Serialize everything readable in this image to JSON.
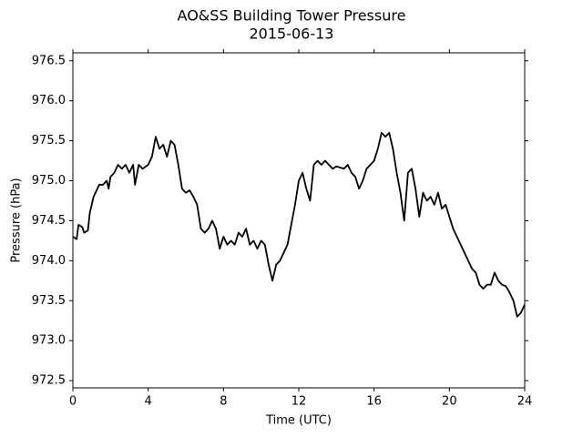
{
  "chart_data": {
    "type": "line",
    "title": [
      "AO&SS Building Tower Pressure",
      "2015-06-13"
    ],
    "x_label": "Time (UTC)",
    "y_label": "Pressure (hPa)",
    "x": [
      0,
      0.2,
      0.3,
      0.5,
      0.6,
      0.8,
      0.9,
      1.0,
      1.1,
      1.3,
      1.4,
      1.6,
      1.8,
      1.9,
      2.0,
      2.2,
      2.4,
      2.6,
      2.8,
      3.0,
      3.2,
      3.3,
      3.5,
      3.7,
      4.0,
      4.2,
      4.4,
      4.6,
      4.8,
      5.0,
      5.2,
      5.4,
      5.6,
      5.8,
      6.0,
      6.2,
      6.4,
      6.6,
      6.8,
      7.0,
      7.2,
      7.4,
      7.6,
      7.8,
      8.0,
      8.2,
      8.4,
      8.6,
      8.8,
      9.0,
      9.2,
      9.4,
      9.6,
      9.8,
      10.0,
      10.2,
      10.4,
      10.6,
      10.8,
      11.0,
      11.2,
      11.4,
      11.6,
      11.8,
      12.0,
      12.2,
      12.4,
      12.6,
      12.8,
      13.0,
      13.2,
      13.4,
      13.6,
      13.8,
      14.0,
      14.4,
      14.6,
      14.8,
      15.0,
      15.2,
      15.4,
      15.6,
      15.8,
      16.0,
      16.2,
      16.4,
      16.6,
      16.8,
      17.0,
      17.2,
      17.4,
      17.6,
      17.8,
      18.0,
      18.2,
      18.4,
      18.6,
      18.8,
      19.0,
      19.2,
      19.4,
      19.6,
      19.8,
      20.0,
      20.2,
      20.4,
      20.6,
      20.8,
      21.0,
      21.2,
      21.4,
      21.6,
      21.8,
      22.0,
      22.2,
      22.4,
      22.6,
      22.8,
      23.0,
      23.2,
      23.4,
      23.6,
      23.8,
      24.0
    ],
    "series": [
      {
        "color": "#000000",
        "values": [
          974.3,
          974.27,
          974.45,
          974.42,
          974.35,
          974.38,
          974.6,
          974.7,
          974.8,
          974.9,
          974.95,
          974.95,
          975.0,
          974.9,
          975.05,
          975.1,
          975.2,
          975.15,
          975.2,
          975.1,
          975.2,
          974.95,
          975.2,
          975.15,
          975.2,
          975.3,
          975.55,
          975.4,
          975.45,
          975.3,
          975.5,
          975.45,
          975.2,
          974.9,
          974.85,
          974.88,
          974.8,
          974.7,
          974.4,
          974.35,
          974.4,
          974.5,
          974.4,
          974.15,
          974.3,
          974.2,
          974.25,
          974.2,
          974.35,
          974.3,
          974.4,
          974.2,
          974.25,
          974.15,
          974.25,
          974.2,
          973.95,
          973.75,
          973.95,
          974.0,
          974.1,
          974.2,
          974.45,
          974.7,
          975.0,
          975.1,
          974.9,
          974.75,
          975.2,
          975.25,
          975.2,
          975.25,
          975.2,
          975.15,
          975.18,
          975.15,
          975.2,
          975.1,
          975.05,
          974.9,
          975.0,
          975.15,
          975.2,
          975.25,
          975.4,
          975.6,
          975.55,
          975.6,
          975.4,
          975.1,
          974.85,
          974.5,
          975.1,
          975.15,
          974.9,
          974.55,
          974.85,
          974.75,
          974.8,
          974.7,
          974.85,
          974.65,
          974.7,
          974.55,
          974.4,
          974.3,
          974.2,
          974.1,
          974.0,
          973.9,
          973.85,
          973.7,
          973.65,
          973.7,
          973.7,
          973.85,
          973.75,
          973.7,
          973.68,
          973.6,
          973.5,
          973.3,
          973.35,
          973.45
        ]
      }
    ],
    "xlim": [
      0,
      24
    ],
    "xticks": [
      0,
      4,
      8,
      12,
      16,
      20,
      24
    ],
    "ylim": [
      972.41,
      976.6
    ],
    "yticks": [
      972.5,
      {
        "value": 973,
        "label": "973.0"
      },
      973.5,
      {
        "value": 974,
        "label": "974.0"
      },
      974.5,
      {
        "value": 975,
        "label": "975.0"
      },
      975.5,
      {
        "value": 976,
        "label": "976.0"
      },
      976.5
    ],
    "grid": false
  }
}
